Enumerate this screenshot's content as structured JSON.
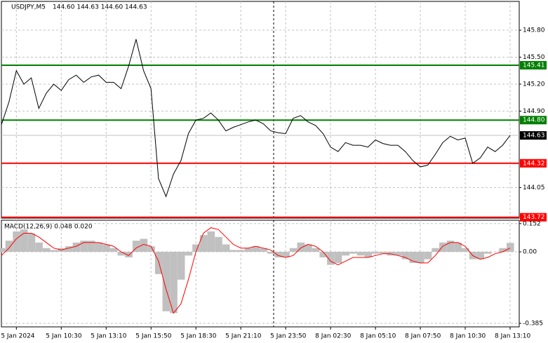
{
  "chart_data": [
    {
      "type": "line",
      "title": "USDJPY,M5",
      "subtitle": "144.60 144.63 144.60 144.63",
      "xlim": [
        0,
        68
      ],
      "ylim": [
        143.71,
        146.12
      ],
      "yticks": [
        {
          "value": 145.8,
          "label": "145.80"
        },
        {
          "value": 145.5,
          "label": "145.50"
        },
        {
          "value": 145.2,
          "label": "145.20"
        },
        {
          "value": 144.9,
          "label": "144.90"
        },
        144.05
      ],
      "grid": true,
      "series": [
        {
          "color": "#000000",
          "values": [
            144.75,
            145.0,
            145.35,
            145.2,
            145.27,
            144.93,
            145.1,
            145.2,
            145.13,
            145.25,
            145.3,
            145.22,
            145.28,
            145.3,
            145.22,
            145.22,
            145.15,
            145.4,
            145.7,
            145.35,
            145.15,
            144.15,
            143.95,
            144.2,
            144.35,
            144.65,
            144.8,
            144.82,
            144.88,
            144.8,
            144.68,
            144.72,
            144.75,
            144.78,
            144.8,
            144.76,
            144.68,
            144.66,
            144.65,
            144.82,
            144.85,
            144.78,
            144.74,
            144.65,
            144.5,
            144.45,
            144.55,
            144.52,
            144.52,
            144.5,
            144.58,
            144.54,
            144.52,
            144.52,
            144.45,
            144.35,
            144.28,
            144.3,
            144.42,
            144.55,
            144.62,
            144.58,
            144.6,
            144.32,
            144.38,
            144.5,
            144.45,
            144.52,
            144.63
          ]
        }
      ],
      "levels": [
        {
          "value": 145.41,
          "color": "#008000"
        },
        {
          "value": 144.8,
          "label": "144.80",
          "color": "#008000"
        },
        {
          "value": 144.32,
          "color": "#ff0000"
        },
        {
          "value": 143.72,
          "color": "#ff0000"
        }
      ],
      "last": {
        "value": 144.63,
        "color": "#c0c0c0"
      }
    },
    {
      "type": "macd",
      "title": "MACD(12,26,9) 0.048 0.020",
      "xlim": [
        0,
        68
      ],
      "ylim": [
        -0.404,
        0.17
      ],
      "yticks": [
        0.152,
        {
          "value": 0,
          "label": "0.00"
        },
        -0.385
      ],
      "xticks": [
        {
          "value": 2,
          "label": "5 Jan 2024"
        },
        {
          "value": 8,
          "label": "5 Jan 10:30"
        },
        {
          "value": 14,
          "label": "5 Jan 13:10"
        },
        {
          "value": 20,
          "label": "5 Jan 15:50"
        },
        {
          "value": 26,
          "label": "5 Jan 18:30"
        },
        {
          "value": 32,
          "label": "5 Jan 21:10"
        },
        {
          "value": 38,
          "label": "5 Jan 23:50"
        },
        {
          "value": 44,
          "label": "8 Jan 02:30"
        },
        {
          "value": 50,
          "label": "8 Jan 05:10"
        },
        {
          "value": 56,
          "label": "8 Jan 07:50"
        },
        {
          "value": 62,
          "label": "8 Jan 10:30"
        },
        {
          "value": 68,
          "label": "8 Jan 13:10"
        }
      ],
      "grid": true,
      "series": [
        {
          "type": "bar",
          "color": "#c0c0c0",
          "values": [
            0.02,
            0.06,
            0.11,
            0.12,
            0.1,
            0.05,
            0.02,
            0.01,
            0.02,
            0.03,
            0.05,
            0.06,
            0.06,
            0.05,
            0.04,
            0.02,
            -0.02,
            -0.03,
            0.06,
            0.07,
            0.03,
            -0.12,
            -0.32,
            -0.33,
            -0.15,
            -0.02,
            0.04,
            0.09,
            0.11,
            0.08,
            0.04,
            0.01,
            0.01,
            0.02,
            0.03,
            0.02,
            -0.01,
            -0.03,
            -0.03,
            0.02,
            0.05,
            0.04,
            0.02,
            -0.03,
            -0.07,
            -0.06,
            -0.02,
            -0.01,
            -0.02,
            -0.03,
            -0.01,
            -0.01,
            -0.02,
            -0.02,
            -0.04,
            -0.06,
            -0.06,
            -0.04,
            0.02,
            0.05,
            0.06,
            0.05,
            0.02,
            -0.04,
            -0.04,
            -0.01,
            0.0,
            0.02,
            0.048
          ]
        },
        {
          "type": "line",
          "color": "#ff0000",
          "values": [
            -0.02,
            0.02,
            0.07,
            0.1,
            0.1,
            0.08,
            0.05,
            0.02,
            0.01,
            0.02,
            0.03,
            0.05,
            0.05,
            0.05,
            0.04,
            0.03,
            0.0,
            -0.02,
            0.02,
            0.04,
            0.03,
            -0.05,
            -0.2,
            -0.33,
            -0.28,
            -0.15,
            0.0,
            0.1,
            0.13,
            0.12,
            0.08,
            0.04,
            0.02,
            0.02,
            0.03,
            0.02,
            0.01,
            -0.02,
            -0.03,
            -0.02,
            0.02,
            0.04,
            0.03,
            0.0,
            -0.05,
            -0.07,
            -0.05,
            -0.03,
            -0.03,
            -0.03,
            -0.02,
            -0.01,
            -0.01,
            -0.02,
            -0.03,
            -0.05,
            -0.06,
            -0.06,
            -0.02,
            0.03,
            0.05,
            0.05,
            0.03,
            -0.02,
            -0.04,
            -0.03,
            -0.01,
            0.0,
            0.02
          ]
        }
      ]
    }
  ]
}
